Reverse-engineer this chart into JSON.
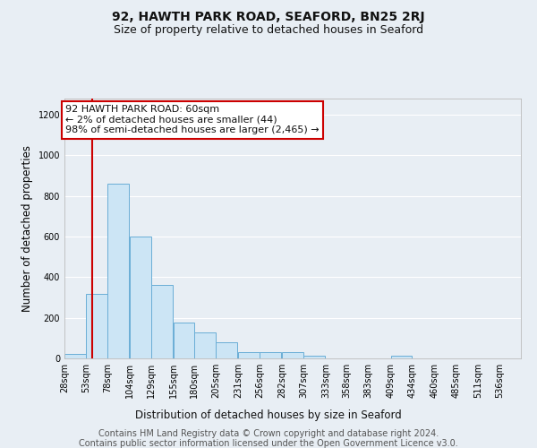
{
  "title_line1": "92, HAWTH PARK ROAD, SEAFORD, BN25 2RJ",
  "title_line2": "Size of property relative to detached houses in Seaford",
  "xlabel": "Distribution of detached houses by size in Seaford",
  "ylabel": "Number of detached properties",
  "annotation_text": "92 HAWTH PARK ROAD: 60sqm\n← 2% of detached houses are smaller (44)\n98% of semi-detached houses are larger (2,465) →",
  "footer_line1": "Contains HM Land Registry data © Crown copyright and database right 2024.",
  "footer_line2": "Contains public sector information licensed under the Open Government Licence v3.0.",
  "bar_color": "#cce5f5",
  "bar_edge_color": "#6aaed6",
  "annotation_box_color": "#cc0000",
  "vline_color": "#cc0000",
  "vline_x": 60,
  "bins_left_edges": [
    28,
    53,
    78,
    104,
    129,
    155,
    180,
    205,
    231,
    256,
    282,
    307,
    333,
    358,
    383,
    409,
    434,
    460,
    485,
    511,
    536
  ],
  "bin_width": 25,
  "bar_heights": [
    20,
    320,
    860,
    600,
    360,
    175,
    130,
    80,
    30,
    30,
    30,
    15,
    0,
    0,
    0,
    15,
    0,
    0,
    0,
    0,
    0
  ],
  "ylim": [
    0,
    1280
  ],
  "yticks": [
    0,
    200,
    400,
    600,
    800,
    1000,
    1200
  ],
  "background_color": "#e8eef4",
  "plot_background": "#e8eef4",
  "grid_color": "#ffffff",
  "title_fontsize": 10,
  "subtitle_fontsize": 9,
  "axis_label_fontsize": 8.5,
  "tick_fontsize": 7,
  "annotation_fontsize": 8,
  "footer_fontsize": 7
}
